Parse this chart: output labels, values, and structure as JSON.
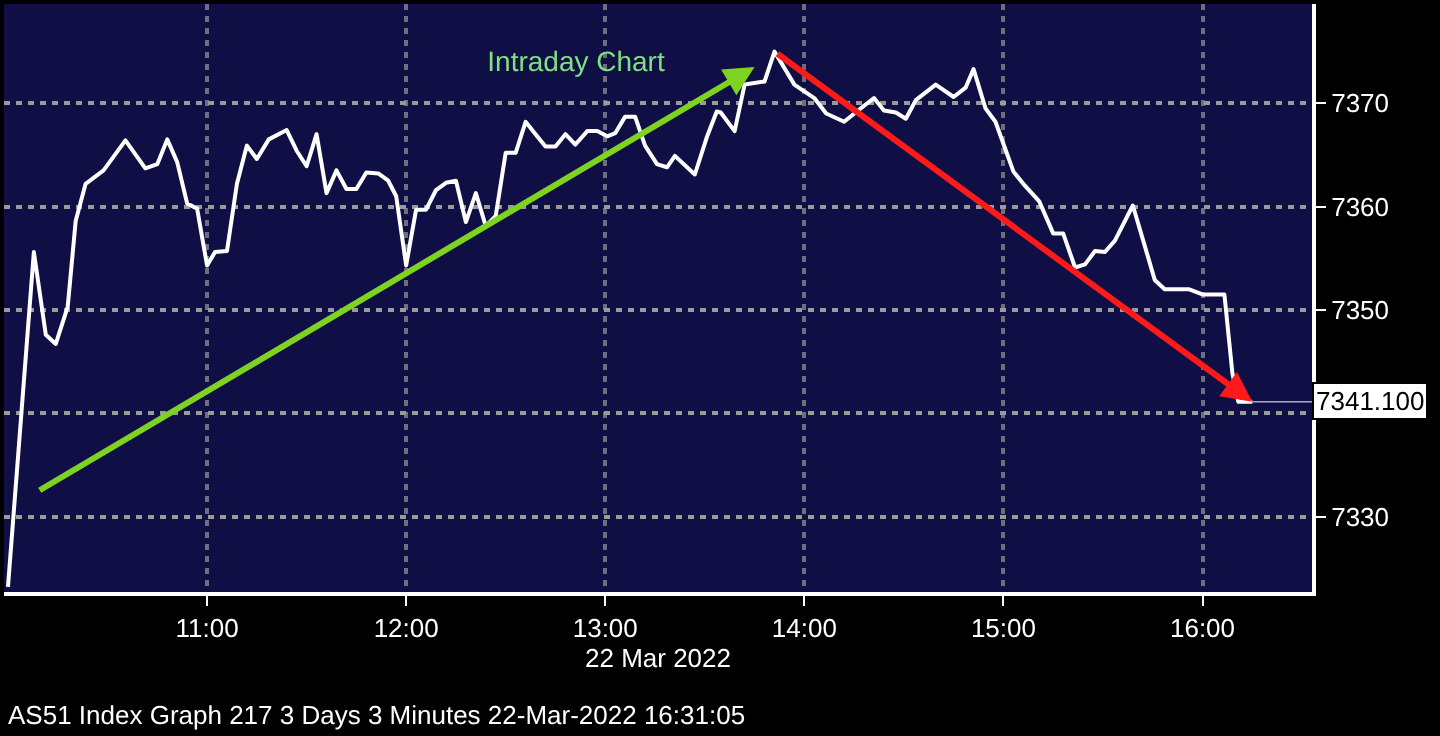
{
  "chart_data": {
    "type": "line",
    "title": "Intraday Chart",
    "xlabel": "22 Mar 2022",
    "annotations": [
      {
        "text": "7341.100",
        "x": 16.25,
        "y": 7341.1
      },
      "AS51 Index Graph 217 3 Days 3 Minutes 22-Mar-2022 16:31:05"
    ],
    "series": [
      {
        "color": "#ffffff",
        "x": [
          10.0,
          10.13,
          10.19,
          10.24,
          10.3,
          10.34,
          10.39,
          10.48,
          10.59,
          10.69,
          10.75,
          10.8,
          10.85,
          10.9,
          10.95,
          11.0,
          11.04,
          11.1,
          11.15,
          11.2,
          11.25,
          11.31,
          11.4,
          11.45,
          11.5,
          11.55,
          11.6,
          11.65,
          11.7,
          11.75,
          11.8,
          11.86,
          11.91,
          11.95,
          12.0,
          12.05,
          12.1,
          12.15,
          12.2,
          12.25,
          12.3,
          12.35,
          12.4,
          12.45,
          12.5,
          12.55,
          12.6,
          12.65,
          12.7,
          12.75,
          12.8,
          12.85,
          12.91,
          12.96,
          13.01,
          13.05,
          13.1,
          13.15,
          13.2,
          13.26,
          13.31,
          13.35,
          13.45,
          13.51,
          13.56,
          13.58,
          13.65,
          13.7,
          13.8,
          13.85,
          13.95,
          14.05,
          14.11,
          14.2,
          14.27,
          14.35,
          14.4,
          14.46,
          14.51,
          14.56,
          14.66,
          14.75,
          14.81,
          14.85,
          14.91,
          14.96,
          15.05,
          15.1,
          15.18,
          15.25,
          15.3,
          15.36,
          15.41,
          15.46,
          15.51,
          15.56,
          15.65,
          15.71,
          15.76,
          15.81,
          15.93,
          16.0,
          16.11,
          16.15,
          16.18,
          16.25
        ],
        "values": [
          7323.2,
          7355.6,
          7347.6,
          7346.7,
          7350.3,
          7358.6,
          7362.2,
          7363.5,
          7366.4,
          7363.7,
          7364.1,
          7366.5,
          7364.3,
          7360.3,
          7359.8,
          7354.3,
          7355.6,
          7355.7,
          7362.2,
          7365.9,
          7364.6,
          7366.5,
          7367.4,
          7365.4,
          7363.9,
          7367.0,
          7361.3,
          7363.5,
          7361.7,
          7361.7,
          7363.3,
          7363.2,
          7362.5,
          7361.0,
          7354.3,
          7359.7,
          7359.7,
          7361.6,
          7362.3,
          7362.5,
          7358.5,
          7361.3,
          7358.1,
          7359.1,
          7365.2,
          7365.2,
          7368.2,
          7367.0,
          7365.8,
          7365.8,
          7367.0,
          7366.0,
          7367.3,
          7367.3,
          7366.8,
          7367.1,
          7368.7,
          7368.7,
          7365.9,
          7364.1,
          7363.8,
          7364.9,
          7363.1,
          7366.7,
          7369.2,
          7369.1,
          7367.3,
          7371.8,
          7372.1,
          7375.0,
          7371.8,
          7370.5,
          7369.0,
          7368.2,
          7369.3,
          7370.5,
          7369.3,
          7369.1,
          7368.5,
          7370.3,
          7371.8,
          7370.6,
          7371.5,
          7373.3,
          7369.5,
          7368.2,
          7363.4,
          7362.2,
          7360.5,
          7357.4,
          7357.4,
          7354.1,
          7354.4,
          7355.7,
          7355.6,
          7356.7,
          7360.1,
          7356.2,
          7352.9,
          7352.0,
          7352.0,
          7351.5,
          7351.5,
          7343.9,
          7341.1,
          7341.1
        ]
      }
    ],
    "xlim": [
      9.98,
      16.55
    ],
    "xticks": [
      {
        "value": 11,
        "label": "11:00"
      },
      {
        "value": 12,
        "label": "12:00"
      },
      {
        "value": 13,
        "label": "13:00"
      },
      {
        "value": 14,
        "label": "14:00"
      },
      {
        "value": 15,
        "label": "15:00"
      },
      {
        "value": 16,
        "label": "16:00"
      }
    ],
    "ylim": [
      7322.7,
      7379.6
    ],
    "yticks": [
      7330,
      {
        "value": 7340,
        "label": null
      },
      7350,
      7360,
      7370
    ],
    "grid": true,
    "legend": false,
    "marker": "none",
    "line_style": "solid"
  }
}
